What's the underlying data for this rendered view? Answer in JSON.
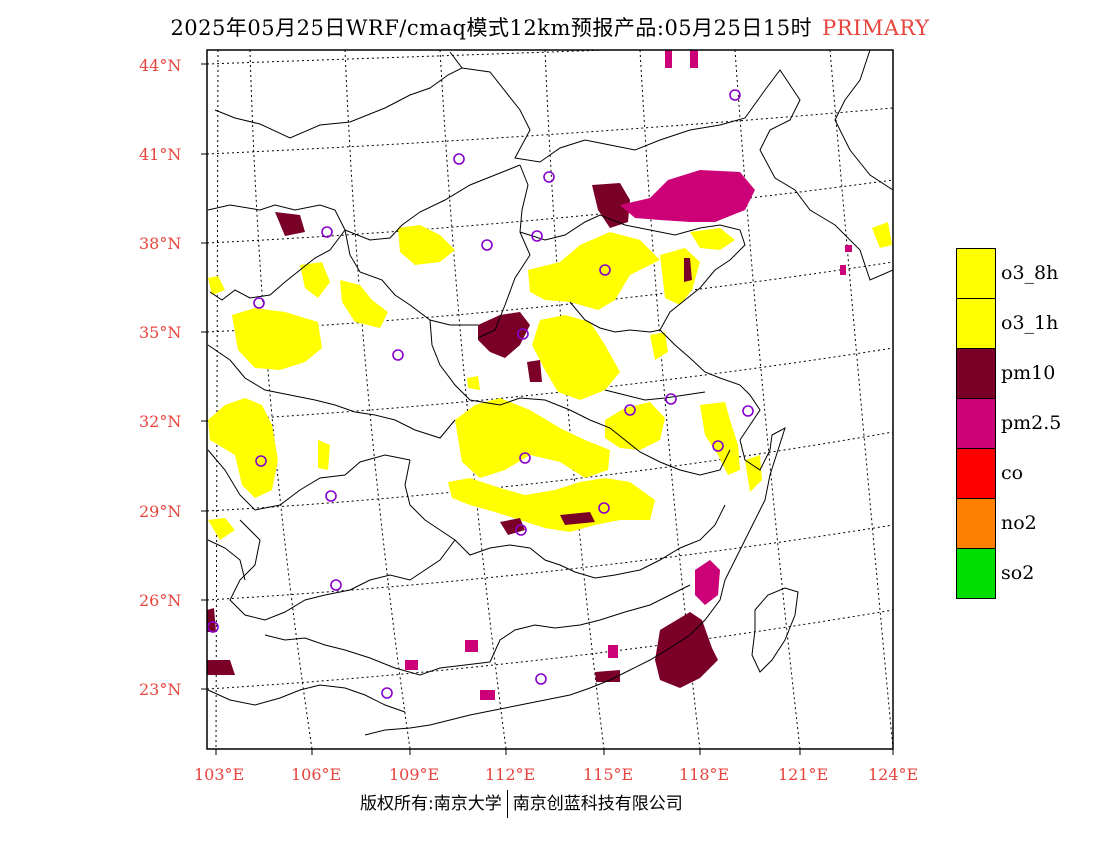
{
  "title": {
    "main": "2025年05月25日WRF/cmaq模式12km预报产品:05月25日15时",
    "tag": "PRIMARY"
  },
  "colors": {
    "o3_8h": "#ffff00",
    "o3_1h": "#ffff00",
    "pm10": "#7b0028",
    "pm2_5": "#cc0077",
    "co": "#ff0000",
    "no2": "#ff7f00",
    "so2": "#00dd00",
    "station": "#8800cc",
    "axis_label": "#e8433c"
  },
  "legend": [
    {
      "label": "o3_8h",
      "color": "#ffff00"
    },
    {
      "label": "o3_1h",
      "color": "#ffff00"
    },
    {
      "label": "pm10",
      "color": "#7b0028"
    },
    {
      "label": "pm2.5",
      "color": "#cc0077"
    },
    {
      "label": "co",
      "color": "#ff0000"
    },
    {
      "label": "no2",
      "color": "#ff7f00"
    },
    {
      "label": "so2",
      "color": "#00dd00"
    }
  ],
  "lat_labels": [
    "44°N",
    "41°N",
    "38°N",
    "35°N",
    "32°N",
    "29°N",
    "26°N",
    "23°N"
  ],
  "lon_labels": [
    "103°E",
    "106°E",
    "109°E",
    "112°E",
    "115°E",
    "118°E",
    "121°E",
    "124°E"
  ],
  "footer": {
    "left": "版权所有:南京大学",
    "right": "南京创蓝科技有限公司"
  }
}
